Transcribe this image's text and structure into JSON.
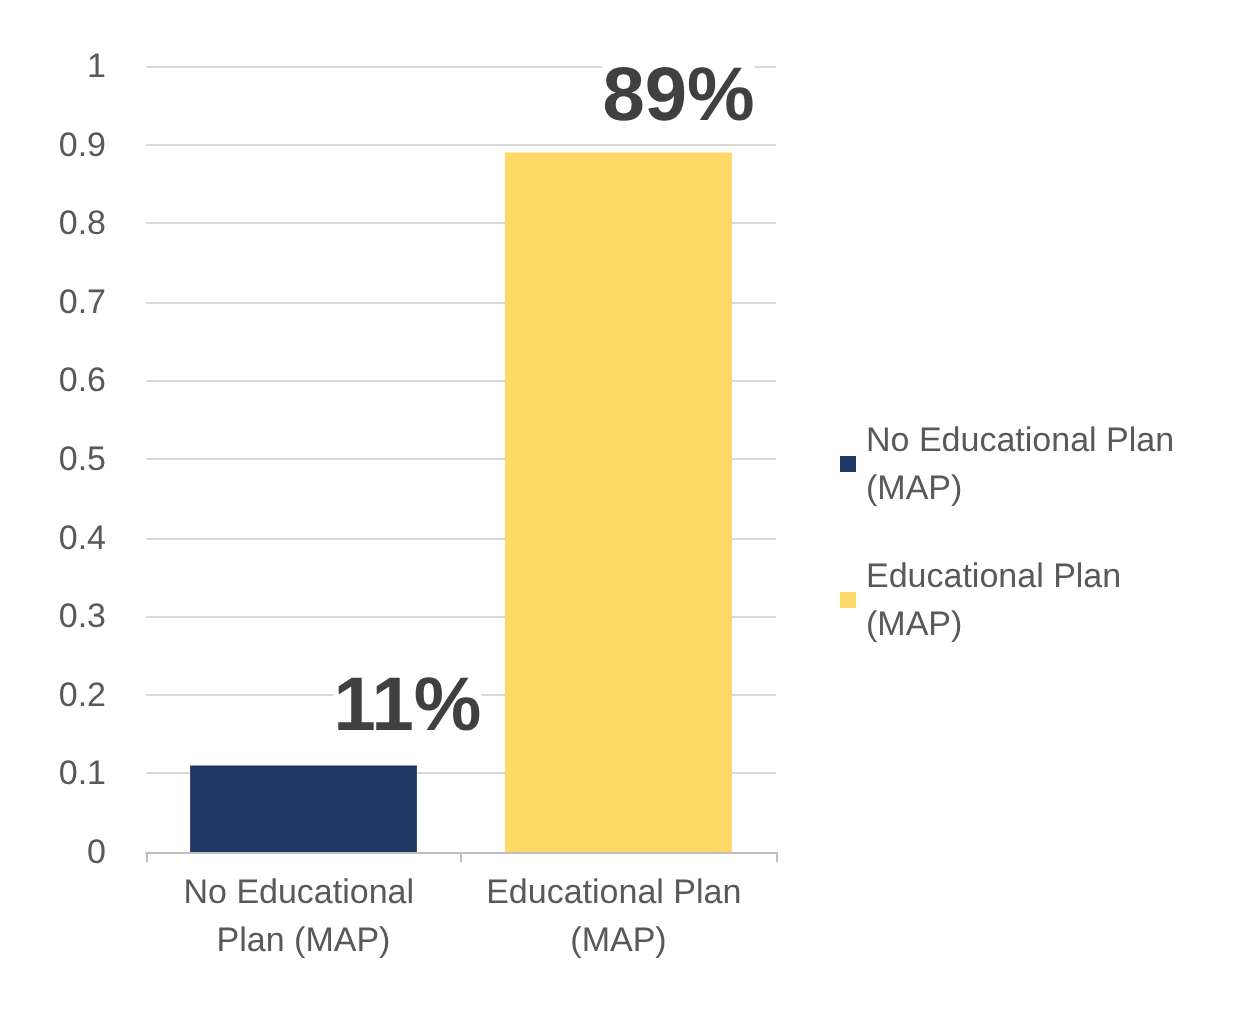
{
  "chart_data": {
    "type": "bar",
    "categories": [
      "No Educational Plan (MAP)",
      "Educational Plan (MAP)"
    ],
    "stacked": true,
    "series": [
      {
        "name": "No Educational Plan (MAP)",
        "color": "#1f3864",
        "values": [
          0.11,
          null
        ],
        "value_labels": [
          "11%",
          null
        ]
      },
      {
        "name": "Educational Plan (MAP)",
        "color": "#ffd966",
        "values": [
          null,
          0.89
        ],
        "value_labels": [
          null,
          "89%"
        ]
      }
    ],
    "ylim": [
      0,
      1
    ],
    "yticks": [
      0,
      0.1,
      0.2,
      0.3,
      0.4,
      0.5,
      0.6,
      0.7,
      0.8,
      0.9,
      1
    ],
    "grid": "y",
    "legend": "right"
  }
}
